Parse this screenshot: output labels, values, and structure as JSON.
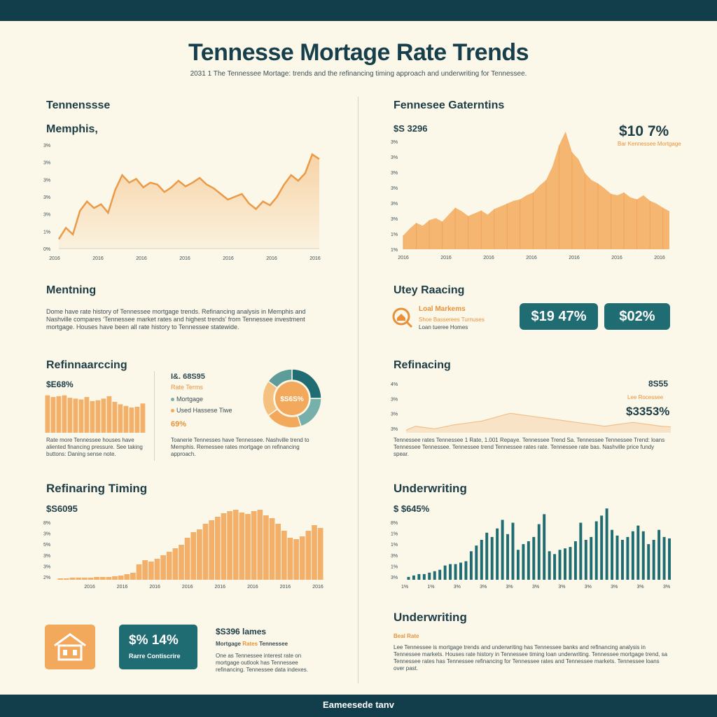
{
  "header": {
    "title": "Tennesse Mortage Rate Trends",
    "subtitle": "2031 1 The Tennessee Mortage: trends and the refinancing timing approach and underwriting for Tennessee."
  },
  "footer": {
    "text": "Eameesede tanv"
  },
  "colors": {
    "navy": "#123d4a",
    "orange": "#f3a95c",
    "orange_light": "#f8d2a3",
    "teal": "#1f6c72",
    "teal_light": "#77b0ab",
    "cream": "#fbf8e9"
  },
  "sections": {
    "memphis": {
      "heading": "Tennenssse",
      "sub": "Memphis,"
    },
    "gaterntins": {
      "heading": "Fennesee Gaterntins",
      "value_left": "$S 3296",
      "value_right": "$10 7%",
      "value_right_note": "Bar Kennessee Mortgage"
    },
    "mentning": {
      "heading": "Mentning",
      "text": "Dome have rate history of Tennessee mortgage trends. Refinancing analysis in Memphis and Nashville compares ‘Tennessee market rates and highest trends’ from Tennessee investment mortgage. Houses have been all rate history to Tennessee statewide."
    },
    "utey": {
      "heading": "Utey Raacing",
      "icon": "house-search-icon",
      "line1": "Loal Markems",
      "line2": "Shoe Basserees Turnuses",
      "line3": "Loan tueree Homes",
      "pill1": "$19 47%",
      "pill2": "$02%"
    },
    "refin_left": {
      "heading": "Refinnaarccing",
      "value": "$E68%",
      "note": "Rate more Tennessee houses have aliented financing pressure. See taking buttons: Daning sense note.",
      "legend_title": "I&. 68S95",
      "legend_items": [
        "Rate Terms",
        "Mortgage",
        "Used Hassese Tiwe"
      ],
      "legend_value": "69%",
      "donut_label": "$S6S%",
      "note2": "Toanerie Tennesses have Tennessee. Nashville trend to Memphis. Remessee rates mortgage on refinancing approach."
    },
    "refin_right": {
      "heading": "Refinacing",
      "value_top": "8S55",
      "value_note": "Lee Rocessee",
      "value_big": "$3353%",
      "note": "Tennessee rates Tennessee 1 Rate, 1.001 Repaye. Tennessee Trend Sa. Tennessee Tennessee Trend: loans Tennessee Tennessee. Tennessee trend Tennessee rates rate. Tennessee rate bas. Nashville price fundy spear."
    },
    "timing": {
      "heading": "Refinaring Timing",
      "value": "$S6095"
    },
    "underwriting_chart": {
      "heading": "Underwriting",
      "value": "$ $645%"
    },
    "bottom_left": {
      "icon": "house-icon",
      "pill_value": "$% 14%",
      "pill_label": "Rarre Contiscrire",
      "title": "$S396 lames",
      "sub1": "Mortgage",
      "sub2": "Rates",
      "sub3": "Tennessee",
      "note": "One as Tennessee interest rate on mortgage outlook has Tennessee refinancing. Tennessee data indexes."
    },
    "underwriting_text": {
      "heading": "Underwriting",
      "tag": "Beal Rate",
      "text": "Lee Tennessee is mortgage trends and underwriting has Tennessee banks and refinancing analysis in Tennessee markets. Houses rate history in Tennessee timing loan underwriting. Tennessee mortgage trend, sa Tennessee rates has Tennessee refinancing for Tennessee rates and Tennessee markets. Tennessee loans over past."
    }
  },
  "chart_data": [
    {
      "type": "area",
      "name": "memphis",
      "ylabels": [
        "3%",
        "3%",
        "3%",
        "3%",
        "3%",
        "1%",
        "0%"
      ],
      "xlabels": [
        "2016",
        "2016",
        "2016",
        "2016",
        "2016",
        "2016",
        "2016"
      ],
      "values": [
        10,
        22,
        15,
        40,
        50,
        43,
        47,
        38,
        62,
        78,
        70,
        74,
        65,
        70,
        68,
        60,
        65,
        72,
        66,
        70,
        75,
        68,
        64,
        58,
        52,
        55,
        58,
        48,
        42,
        50,
        46,
        55,
        68,
        78,
        72,
        80,
        100,
        95
      ],
      "ylim": [
        0,
        110
      ]
    },
    {
      "type": "area",
      "name": "gaterntins",
      "ylabels": [
        "3%",
        "3%",
        "3%",
        "3%",
        "3%",
        "3%",
        "1%",
        "1%"
      ],
      "xlabels": [
        "2016",
        "2016",
        "2016",
        "2016",
        "2016",
        "2016",
        "2016"
      ],
      "values": [
        20,
        30,
        38,
        34,
        42,
        45,
        40,
        50,
        60,
        55,
        48,
        52,
        56,
        50,
        58,
        62,
        66,
        70,
        72,
        78,
        82,
        92,
        100,
        120,
        150,
        170,
        140,
        130,
        110,
        100,
        95,
        88,
        80,
        78,
        82,
        75,
        72,
        78,
        70,
        66,
        60,
        55
      ],
      "ylim": [
        0,
        180
      ]
    },
    {
      "type": "bar",
      "name": "refin_left",
      "values": [
        92,
        88,
        90,
        92,
        86,
        84,
        82,
        88,
        78,
        80,
        84,
        90,
        76,
        70,
        66,
        62,
        64,
        72
      ],
      "ylim": [
        0,
        100
      ]
    },
    {
      "type": "pie",
      "name": "refin_donut",
      "values": [
        25,
        20,
        20,
        20,
        15
      ]
    },
    {
      "type": "area",
      "name": "refin_right",
      "ylabels": [
        "4%",
        "3%",
        "3%",
        "3%"
      ],
      "values": [
        4,
        10,
        8,
        6,
        9,
        12,
        14,
        16,
        18,
        22,
        26,
        30,
        28,
        26,
        24,
        22,
        20,
        18,
        16,
        14,
        12,
        10,
        12,
        14,
        16,
        14,
        12,
        10,
        9
      ],
      "ylim": [
        0,
        80
      ]
    },
    {
      "type": "bar",
      "name": "timing",
      "ylabels": [
        "8%",
        "3%",
        "5%",
        "3%",
        "3%",
        "2%"
      ],
      "xlabels": [
        "2016",
        "2016",
        "2016",
        "2016",
        "2016",
        "2016",
        "2016",
        "2016"
      ],
      "values": [
        2,
        2,
        3,
        3,
        3,
        3,
        4,
        4,
        4,
        5,
        6,
        8,
        10,
        22,
        28,
        26,
        30,
        35,
        40,
        45,
        50,
        60,
        68,
        72,
        80,
        85,
        90,
        95,
        98,
        100,
        96,
        94,
        98,
        100,
        92,
        88,
        80,
        70,
        60,
        58,
        62,
        70,
        78,
        74
      ],
      "ylim": [
        0,
        110
      ]
    },
    {
      "type": "bar",
      "name": "underwriting",
      "ylabels": [
        "8%",
        "1%",
        "1%",
        "3%",
        "1%",
        "3%"
      ],
      "xlabels": [
        "1%",
        "1%",
        "3%",
        "3%",
        "3%",
        "3%",
        "3%",
        "3%",
        "3%",
        "3%",
        "3%"
      ],
      "values": [
        4,
        6,
        8,
        8,
        10,
        12,
        14,
        20,
        22,
        22,
        24,
        26,
        40,
        48,
        56,
        66,
        60,
        72,
        84,
        64,
        80,
        42,
        50,
        54,
        60,
        78,
        92,
        40,
        36,
        42,
        44,
        46,
        54,
        80,
        56,
        60,
        82,
        90,
        100,
        70,
        62,
        56,
        60,
        68,
        76,
        68,
        50,
        56,
        70,
        60,
        58
      ],
      "ylim": [
        0,
        110
      ]
    }
  ]
}
